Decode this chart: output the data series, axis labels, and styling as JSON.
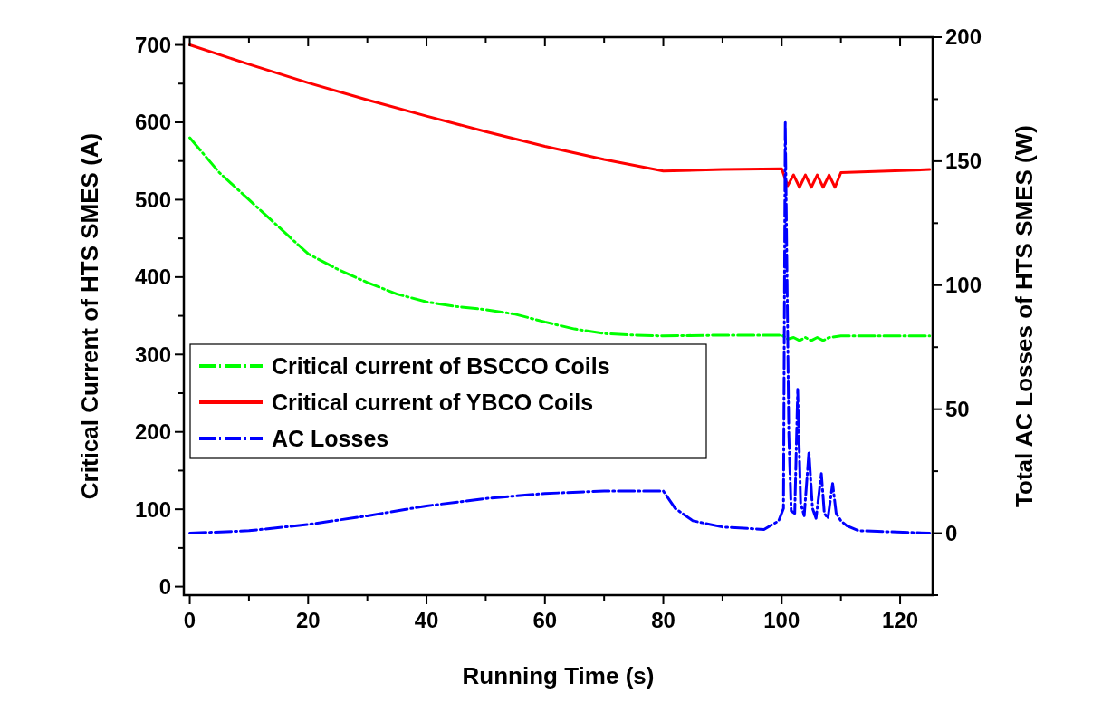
{
  "chart_data": {
    "type": "line",
    "xlabel": "Running Time (s)",
    "ylabel": "Critical Current of HTS SMES (A)",
    "y2label": "Total AC Losses of HTS SMES (W)",
    "xlim": [
      -1,
      125.5
    ],
    "xticks": [
      0,
      {
        "value": 10,
        "label": null
      },
      20,
      {
        "value": 30,
        "label": null
      },
      40,
      {
        "value": 50,
        "label": null
      },
      60,
      {
        "value": 70,
        "label": null
      },
      80,
      {
        "value": 90,
        "label": null
      },
      100,
      {
        "value": 110,
        "label": null
      },
      120
    ],
    "ylim": [
      -11,
      710
    ],
    "yticks": [
      0,
      {
        "value": 50,
        "label": null
      },
      100,
      {
        "value": 150,
        "label": null
      },
      200,
      {
        "value": 250,
        "label": null
      },
      300,
      {
        "value": 350,
        "label": null
      },
      400,
      {
        "value": 450,
        "label": null
      },
      500,
      {
        "value": 550,
        "label": null
      },
      600,
      {
        "value": 650,
        "label": null
      },
      700
    ],
    "y2lim": [
      -25,
      200
    ],
    "y2ticks": [
      {
        "value": -25,
        "label": null
      },
      0,
      {
        "value": 25,
        "label": null
      },
      50,
      {
        "value": 75,
        "label": null
      },
      100,
      {
        "value": 125,
        "label": null
      },
      150,
      {
        "value": 175,
        "label": null
      },
      200
    ],
    "grid": false,
    "legend": "left",
    "marker": "none",
    "series": [
      {
        "name": "Critical current of BSCCO Coils",
        "color": "#00ff00",
        "line_style": "dashed",
        "x": [
          0,
          5,
          10,
          15,
          20,
          25,
          30,
          35,
          40,
          45,
          50,
          55,
          60,
          65,
          70,
          75,
          80,
          90,
          100,
          101,
          102,
          103,
          104,
          105,
          106,
          107,
          108,
          110,
          125
        ],
        "values": [
          580,
          535,
          500,
          465,
          430,
          410,
          393,
          378,
          368,
          362,
          358,
          352,
          342,
          333,
          327,
          325,
          324,
          325,
          325,
          320,
          322,
          318,
          322,
          318,
          322,
          318,
          322,
          324,
          324
        ]
      },
      {
        "name": "Critical current of YBCO Coils",
        "color": "#ff0000",
        "line_style": "solid",
        "x": [
          0,
          10,
          20,
          30,
          40,
          50,
          60,
          70,
          80,
          90,
          100,
          101,
          102,
          103,
          104,
          105,
          106,
          107,
          108,
          109,
          110,
          125
        ],
        "values": [
          700,
          675,
          651,
          629,
          608,
          588,
          569,
          552,
          537,
          539,
          540,
          518,
          532,
          516,
          532,
          516,
          532,
          516,
          532,
          516,
          535,
          539
        ]
      },
      {
        "name": "AC Losses",
        "color": "#0000ff",
        "line_style": "dashed",
        "axis": "y2",
        "x": [
          0,
          10,
          20,
          30,
          40,
          50,
          60,
          70,
          80,
          82,
          85,
          90,
          97,
          99.5,
          100.3,
          100.6,
          101.2,
          101.6,
          102.2,
          102.7,
          103.2,
          103.8,
          104.6,
          105.2,
          105.8,
          106.7,
          107.2,
          107.8,
          108.6,
          109.2,
          110,
          111,
          113,
          125
        ],
        "values": [
          0,
          1,
          3.5,
          7,
          11,
          14,
          16,
          17,
          17,
          10,
          5,
          2.5,
          1.5,
          5,
          10,
          166,
          40,
          9,
          8,
          58,
          12,
          7,
          33,
          10,
          6,
          24,
          8,
          6,
          20,
          8,
          5,
          3,
          1,
          0
        ]
      }
    ]
  }
}
